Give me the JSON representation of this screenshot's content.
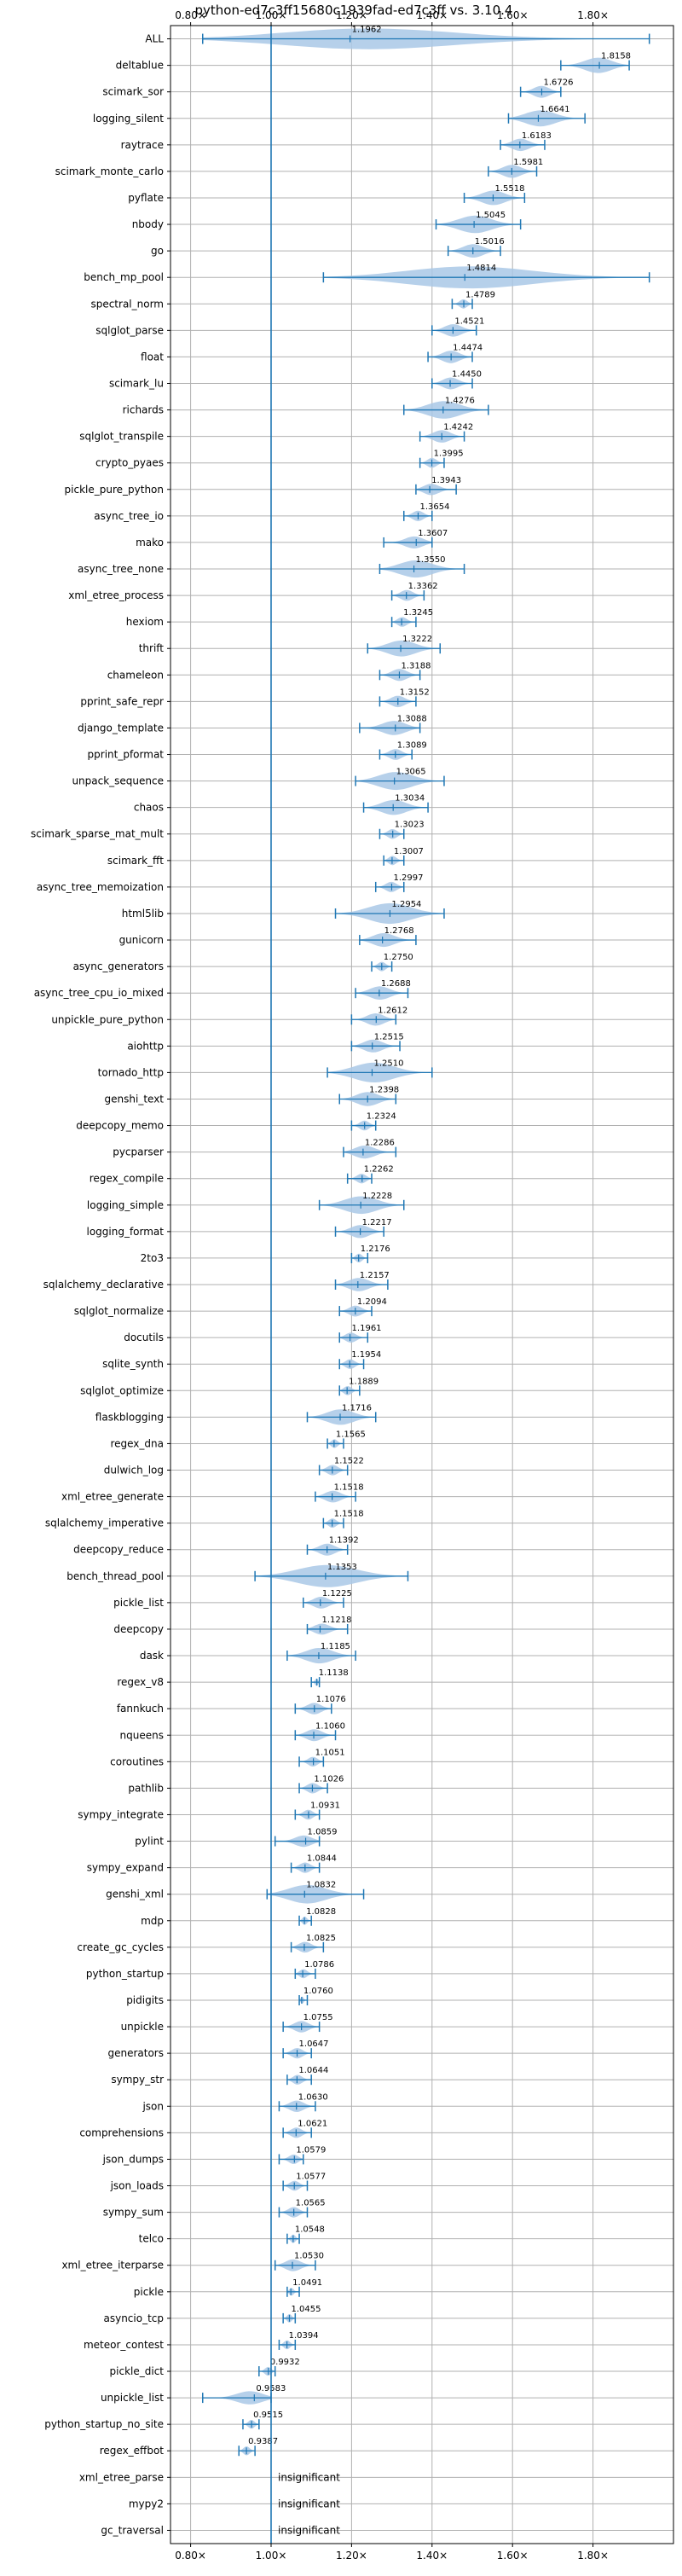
{
  "chart_data": {
    "type": "violin",
    "title": "python-ed7c3ff15680c1939fad-ed7c3ff vs. 3.10.4",
    "xlim": [
      0.75,
      2.0
    ],
    "xticks": [
      0.8,
      1.0,
      1.2,
      1.4,
      1.6,
      1.8
    ],
    "xtick_labels": [
      "0.80×",
      "1.00×",
      "1.20×",
      "1.40×",
      "1.60×",
      "1.80×"
    ],
    "reference_line": 1.0,
    "grid": true,
    "categories": [
      "ALL",
      "deltablue",
      "scimark_sor",
      "logging_silent",
      "raytrace",
      "scimark_monte_carlo",
      "pyflate",
      "nbody",
      "go",
      "bench_mp_pool",
      "spectral_norm",
      "sqlglot_parse",
      "float",
      "scimark_lu",
      "richards",
      "sqlglot_transpile",
      "crypto_pyaes",
      "pickle_pure_python",
      "async_tree_io",
      "mako",
      "async_tree_none",
      "xml_etree_process",
      "hexiom",
      "thrift",
      "chameleon",
      "pprint_safe_repr",
      "django_template",
      "pprint_pformat",
      "unpack_sequence",
      "chaos",
      "scimark_sparse_mat_mult",
      "scimark_fft",
      "async_tree_memoization",
      "html5lib",
      "gunicorn",
      "async_generators",
      "async_tree_cpu_io_mixed",
      "unpickle_pure_python",
      "aiohttp",
      "tornado_http",
      "genshi_text",
      "deepcopy_memo",
      "pycparser",
      "regex_compile",
      "logging_simple",
      "logging_format",
      "2to3",
      "sqlalchemy_declarative",
      "sqlglot_normalize",
      "docutils",
      "sqlite_synth",
      "sqlglot_optimize",
      "flaskblogging",
      "regex_dna",
      "dulwich_log",
      "xml_etree_generate",
      "sqlalchemy_imperative",
      "deepcopy_reduce",
      "bench_thread_pool",
      "pickle_list",
      "deepcopy",
      "dask",
      "regex_v8",
      "fannkuch",
      "nqueens",
      "coroutines",
      "pathlib",
      "sympy_integrate",
      "pylint",
      "sympy_expand",
      "genshi_xml",
      "mdp",
      "create_gc_cycles",
      "python_startup",
      "pidigits",
      "unpickle",
      "generators",
      "sympy_str",
      "json",
      "comprehensions",
      "json_dumps",
      "json_loads",
      "sympy_sum",
      "telco",
      "xml_etree_iterparse",
      "pickle",
      "asyncio_tcp",
      "meteor_contest",
      "pickle_dict",
      "unpickle_list",
      "python_startup_no_site",
      "regex_effbot",
      "xml_etree_parse",
      "mypy2",
      "gc_traversal"
    ],
    "values": [
      1.1962,
      1.8158,
      1.6726,
      1.6641,
      1.6183,
      1.5981,
      1.5518,
      1.5045,
      1.5016,
      1.4814,
      1.4789,
      1.4521,
      1.4474,
      1.445,
      1.4276,
      1.4242,
      1.3995,
      1.3943,
      1.3654,
      1.3607,
      1.355,
      1.3362,
      1.3245,
      1.3222,
      1.3188,
      1.3152,
      1.3088,
      1.3089,
      1.3065,
      1.3034,
      1.3023,
      1.3007,
      1.2997,
      1.2954,
      1.2768,
      1.275,
      1.2688,
      1.2612,
      1.2515,
      1.251,
      1.2398,
      1.2324,
      1.2286,
      1.2262,
      1.2228,
      1.2217,
      1.2176,
      1.2157,
      1.2094,
      1.1961,
      1.1954,
      1.1889,
      1.1716,
      1.1565,
      1.1522,
      1.1518,
      1.1518,
      1.1392,
      1.1353,
      1.1225,
      1.1218,
      1.1185,
      1.1138,
      1.1076,
      1.106,
      1.1051,
      1.1026,
      1.0931,
      1.0859,
      1.0844,
      1.0832,
      1.0828,
      1.0825,
      1.0786,
      1.076,
      1.0755,
      1.0647,
      1.0644,
      1.063,
      1.0621,
      1.0579,
      1.0577,
      1.0565,
      1.0548,
      1.053,
      1.0491,
      1.0455,
      1.0394,
      0.9932,
      0.9583,
      0.9515,
      0.9387,
      null,
      null,
      null
    ],
    "value_labels": [
      "1.1962",
      "1.8158",
      "1.6726",
      "1.6641",
      "1.6183",
      "1.5981",
      "1.5518",
      "1.5045",
      "1.5016",
      "1.4814",
      "1.4789",
      "1.4521",
      "1.4474",
      "1.4450",
      "1.4276",
      "1.4242",
      "1.3995",
      "1.3943",
      "1.3654",
      "1.3607",
      "1.3550",
      "1.3362",
      "1.3245",
      "1.3222",
      "1.3188",
      "1.3152",
      "1.3088",
      "1.3089",
      "1.3065",
      "1.3034",
      "1.3023",
      "1.3007",
      "1.2997",
      "1.2954",
      "1.2768",
      "1.2750",
      "1.2688",
      "1.2612",
      "1.2515",
      "1.2510",
      "1.2398",
      "1.2324",
      "1.2286",
      "1.2262",
      "1.2228",
      "1.2217",
      "1.2176",
      "1.2157",
      "1.2094",
      "1.1961",
      "1.1954",
      "1.1889",
      "1.1716",
      "1.1565",
      "1.1522",
      "1.1518",
      "1.1518",
      "1.1392",
      "1.1353",
      "1.1225",
      "1.1218",
      "1.1185",
      "1.1138",
      "1.1076",
      "1.1060",
      "1.1051",
      "1.1026",
      "1.0931",
      "1.0859",
      "1.0844",
      "1.0832",
      "1.0828",
      "1.0825",
      "1.0786",
      "1.0760",
      "1.0755",
      "1.0647",
      "1.0644",
      "1.0630",
      "1.0621",
      "1.0579",
      "1.0577",
      "1.0565",
      "1.0548",
      "1.0530",
      "1.0491",
      "1.0455",
      "1.0394",
      "0.9932",
      "0.9583",
      "0.9515",
      "0.9387",
      "insignificant",
      "insignificant",
      "insignificant"
    ],
    "ranges": [
      [
        0.83,
        1.94
      ],
      [
        1.72,
        1.89
      ],
      [
        1.62,
        1.72
      ],
      [
        1.59,
        1.78
      ],
      [
        1.57,
        1.68
      ],
      [
        1.54,
        1.66
      ],
      [
        1.48,
        1.63
      ],
      [
        1.41,
        1.62
      ],
      [
        1.44,
        1.57
      ],
      [
        1.13,
        1.94
      ],
      [
        1.45,
        1.5
      ],
      [
        1.4,
        1.51
      ],
      [
        1.39,
        1.5
      ],
      [
        1.4,
        1.5
      ],
      [
        1.33,
        1.54
      ],
      [
        1.37,
        1.48
      ],
      [
        1.37,
        1.43
      ],
      [
        1.36,
        1.46
      ],
      [
        1.33,
        1.4
      ],
      [
        1.28,
        1.4
      ],
      [
        1.27,
        1.48
      ],
      [
        1.3,
        1.38
      ],
      [
        1.3,
        1.36
      ],
      [
        1.24,
        1.42
      ],
      [
        1.27,
        1.37
      ],
      [
        1.27,
        1.36
      ],
      [
        1.22,
        1.37
      ],
      [
        1.27,
        1.35
      ],
      [
        1.21,
        1.43
      ],
      [
        1.23,
        1.39
      ],
      [
        1.27,
        1.33
      ],
      [
        1.28,
        1.33
      ],
      [
        1.26,
        1.33
      ],
      [
        1.16,
        1.43
      ],
      [
        1.22,
        1.36
      ],
      [
        1.25,
        1.3
      ],
      [
        1.21,
        1.34
      ],
      [
        1.2,
        1.31
      ],
      [
        1.2,
        1.32
      ],
      [
        1.14,
        1.4
      ],
      [
        1.17,
        1.31
      ],
      [
        1.2,
        1.26
      ],
      [
        1.18,
        1.31
      ],
      [
        1.19,
        1.25
      ],
      [
        1.12,
        1.33
      ],
      [
        1.16,
        1.28
      ],
      [
        1.2,
        1.24
      ],
      [
        1.16,
        1.29
      ],
      [
        1.17,
        1.25
      ],
      [
        1.17,
        1.24
      ],
      [
        1.17,
        1.23
      ],
      [
        1.17,
        1.22
      ],
      [
        1.09,
        1.26
      ],
      [
        1.14,
        1.18
      ],
      [
        1.12,
        1.19
      ],
      [
        1.11,
        1.21
      ],
      [
        1.13,
        1.18
      ],
      [
        1.09,
        1.19
      ],
      [
        0.96,
        1.34
      ],
      [
        1.08,
        1.18
      ],
      [
        1.09,
        1.19
      ],
      [
        1.04,
        1.21
      ],
      [
        1.1,
        1.12
      ],
      [
        1.06,
        1.15
      ],
      [
        1.06,
        1.16
      ],
      [
        1.07,
        1.13
      ],
      [
        1.07,
        1.14
      ],
      [
        1.06,
        1.12
      ],
      [
        1.01,
        1.12
      ],
      [
        1.05,
        1.12
      ],
      [
        0.99,
        1.23
      ],
      [
        1.07,
        1.1
      ],
      [
        1.05,
        1.13
      ],
      [
        1.06,
        1.11
      ],
      [
        1.07,
        1.09
      ],
      [
        1.03,
        1.12
      ],
      [
        1.03,
        1.1
      ],
      [
        1.04,
        1.1
      ],
      [
        1.02,
        1.11
      ],
      [
        1.03,
        1.1
      ],
      [
        1.02,
        1.08
      ],
      [
        1.03,
        1.09
      ],
      [
        1.02,
        1.09
      ],
      [
        1.04,
        1.07
      ],
      [
        1.01,
        1.11
      ],
      [
        1.04,
        1.07
      ],
      [
        1.03,
        1.06
      ],
      [
        1.02,
        1.06
      ],
      [
        0.97,
        1.01
      ],
      [
        0.83,
        1.0
      ],
      [
        0.93,
        0.97
      ],
      [
        0.92,
        0.96
      ],
      null,
      null,
      null
    ]
  }
}
